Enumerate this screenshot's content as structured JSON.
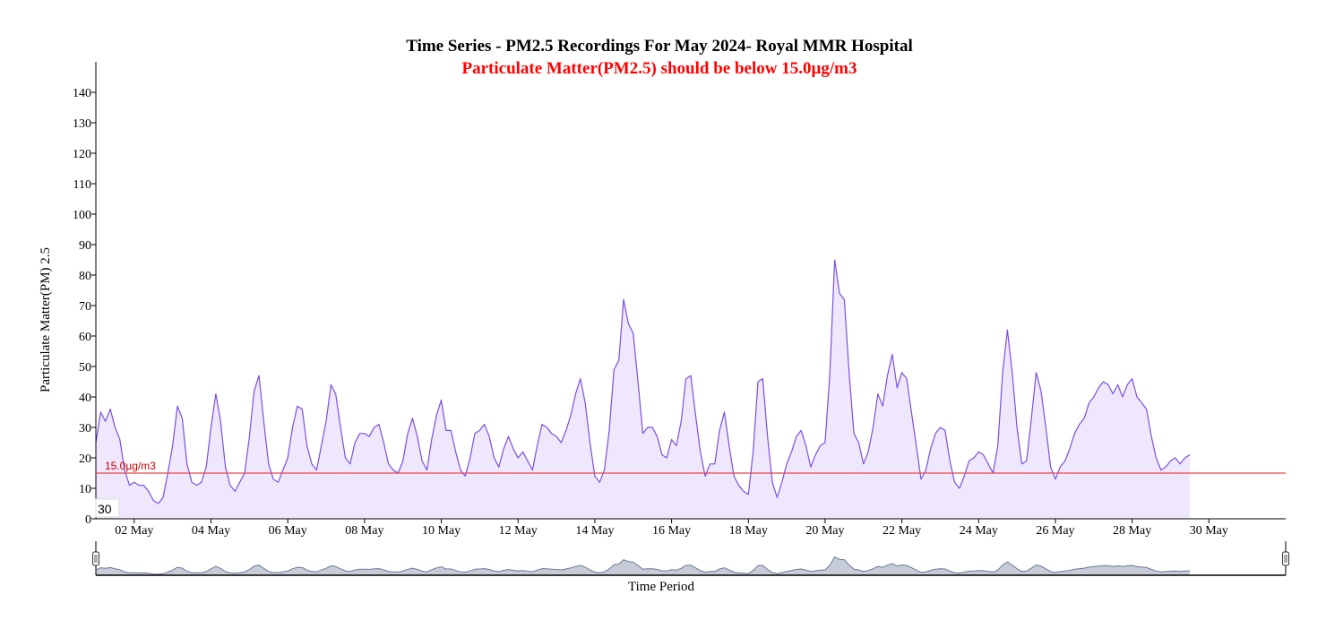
{
  "chart_data": {
    "type": "area",
    "title": "Time Series - PM2.5 Recordings For May 2024- Royal MMR Hospital",
    "subtitle": "Particulate Matter(PM2.5) should be below 15.0µg/m3",
    "xlabel": "Time Period",
    "ylabel": "Particulate Matter(PM) 2.5",
    "ylim": [
      0,
      150
    ],
    "xlim": [
      "2024-05-01",
      "2024-06-01"
    ],
    "y_ticks": [
      0,
      10,
      20,
      30,
      40,
      50,
      60,
      70,
      80,
      90,
      100,
      110,
      120,
      130,
      140
    ],
    "x_ticks": [
      "02 May",
      "04 May",
      "06 May",
      "08 May",
      "10 May",
      "12 May",
      "14 May",
      "16 May",
      "18 May",
      "20 May",
      "22 May",
      "24 May",
      "26 May",
      "28 May",
      "30 May"
    ],
    "threshold": {
      "value": 15.0,
      "label": "15.0µg/m3",
      "color": "#e8454f"
    },
    "badge": "30",
    "grid": false,
    "legend": "none",
    "series": [
      {
        "color": "#7b4fe0",
        "fill": "#efe8fd",
        "points": [
          [
            "2024-05-01 00:00",
            25
          ],
          [
            "2024-05-01 03:00",
            35
          ],
          [
            "2024-05-01 06:00",
            32
          ],
          [
            "2024-05-01 09:00",
            36
          ],
          [
            "2024-05-01 12:00",
            30
          ],
          [
            "2024-05-01 15:00",
            26
          ],
          [
            "2024-05-01 18:00",
            16
          ],
          [
            "2024-05-01 21:00",
            11
          ],
          [
            "2024-05-02 00:00",
            12
          ],
          [
            "2024-05-02 03:00",
            11
          ],
          [
            "2024-05-02 06:00",
            11
          ],
          [
            "2024-05-02 09:00",
            9
          ],
          [
            "2024-05-02 12:00",
            6
          ],
          [
            "2024-05-02 15:00",
            5
          ],
          [
            "2024-05-02 18:00",
            7
          ],
          [
            "2024-05-02 21:00",
            15
          ],
          [
            "2024-05-03 00:00",
            24
          ],
          [
            "2024-05-03 03:00",
            37
          ],
          [
            "2024-05-03 06:00",
            33
          ],
          [
            "2024-05-03 09:00",
            18
          ],
          [
            "2024-05-03 12:00",
            12
          ],
          [
            "2024-05-03 15:00",
            11
          ],
          [
            "2024-05-03 18:00",
            12
          ],
          [
            "2024-05-03 21:00",
            17
          ],
          [
            "2024-05-04 00:00",
            30
          ],
          [
            "2024-05-04 03:00",
            41
          ],
          [
            "2024-05-04 06:00",
            32
          ],
          [
            "2024-05-04 09:00",
            17
          ],
          [
            "2024-05-04 12:00",
            11
          ],
          [
            "2024-05-04 15:00",
            9
          ],
          [
            "2024-05-04 18:00",
            12
          ],
          [
            "2024-05-04 21:00",
            15
          ],
          [
            "2024-05-05 00:00",
            27
          ],
          [
            "2024-05-05 03:00",
            42
          ],
          [
            "2024-05-05 06:00",
            47
          ],
          [
            "2024-05-05 09:00",
            32
          ],
          [
            "2024-05-05 12:00",
            18
          ],
          [
            "2024-05-05 15:00",
            13
          ],
          [
            "2024-05-05 18:00",
            12
          ],
          [
            "2024-05-05 21:00",
            16
          ],
          [
            "2024-05-06 00:00",
            20
          ],
          [
            "2024-05-06 03:00",
            30
          ],
          [
            "2024-05-06 06:00",
            37
          ],
          [
            "2024-05-06 09:00",
            36
          ],
          [
            "2024-05-06 12:00",
            24
          ],
          [
            "2024-05-06 15:00",
            18
          ],
          [
            "2024-05-06 18:00",
            16
          ],
          [
            "2024-05-06 21:00",
            24
          ],
          [
            "2024-05-07 00:00",
            32
          ],
          [
            "2024-05-07 03:00",
            44
          ],
          [
            "2024-05-07 06:00",
            41
          ],
          [
            "2024-05-07 09:00",
            30
          ],
          [
            "2024-05-07 12:00",
            20
          ],
          [
            "2024-05-07 15:00",
            18
          ],
          [
            "2024-05-07 18:00",
            25
          ],
          [
            "2024-05-07 21:00",
            28
          ],
          [
            "2024-05-08 00:00",
            28
          ],
          [
            "2024-05-08 03:00",
            27
          ],
          [
            "2024-05-08 06:00",
            30
          ],
          [
            "2024-05-08 09:00",
            31
          ],
          [
            "2024-05-08 12:00",
            25
          ],
          [
            "2024-05-08 15:00",
            18
          ],
          [
            "2024-05-08 18:00",
            16
          ],
          [
            "2024-05-08 21:00",
            15
          ],
          [
            "2024-05-09 00:00",
            19
          ],
          [
            "2024-05-09 03:00",
            28
          ],
          [
            "2024-05-09 06:00",
            33
          ],
          [
            "2024-05-09 09:00",
            27
          ],
          [
            "2024-05-09 12:00",
            19
          ],
          [
            "2024-05-09 15:00",
            16
          ],
          [
            "2024-05-09 18:00",
            26
          ],
          [
            "2024-05-09 21:00",
            34
          ],
          [
            "2024-05-10 00:00",
            39
          ],
          [
            "2024-05-10 03:00",
            29
          ],
          [
            "2024-05-10 06:00",
            29
          ],
          [
            "2024-05-10 09:00",
            22
          ],
          [
            "2024-05-10 12:00",
            16
          ],
          [
            "2024-05-10 15:00",
            14
          ],
          [
            "2024-05-10 18:00",
            20
          ],
          [
            "2024-05-10 21:00",
            28
          ],
          [
            "2024-05-11 00:00",
            29
          ],
          [
            "2024-05-11 03:00",
            31
          ],
          [
            "2024-05-11 06:00",
            27
          ],
          [
            "2024-05-11 09:00",
            20
          ],
          [
            "2024-05-11 12:00",
            17
          ],
          [
            "2024-05-11 15:00",
            23
          ],
          [
            "2024-05-11 18:00",
            27
          ],
          [
            "2024-05-11 21:00",
            23
          ],
          [
            "2024-05-12 00:00",
            20
          ],
          [
            "2024-05-12 03:00",
            22
          ],
          [
            "2024-05-12 06:00",
            19
          ],
          [
            "2024-05-12 09:00",
            16
          ],
          [
            "2024-05-12 12:00",
            24
          ],
          [
            "2024-05-12 15:00",
            31
          ],
          [
            "2024-05-12 18:00",
            30
          ],
          [
            "2024-05-12 21:00",
            28
          ],
          [
            "2024-05-13 00:00",
            27
          ],
          [
            "2024-05-13 03:00",
            25
          ],
          [
            "2024-05-13 06:00",
            29
          ],
          [
            "2024-05-13 09:00",
            34
          ],
          [
            "2024-05-13 12:00",
            41
          ],
          [
            "2024-05-13 15:00",
            46
          ],
          [
            "2024-05-13 18:00",
            38
          ],
          [
            "2024-05-13 21:00",
            25
          ],
          [
            "2024-05-14 00:00",
            14
          ],
          [
            "2024-05-14 03:00",
            12
          ],
          [
            "2024-05-14 06:00",
            16
          ],
          [
            "2024-05-14 09:00",
            29
          ],
          [
            "2024-05-14 12:00",
            49
          ],
          [
            "2024-05-14 15:00",
            52
          ],
          [
            "2024-05-14 18:00",
            72
          ],
          [
            "2024-05-14 21:00",
            64
          ],
          [
            "2024-05-15 00:00",
            61
          ],
          [
            "2024-05-15 03:00",
            45
          ],
          [
            "2024-05-15 06:00",
            28
          ],
          [
            "2024-05-15 09:00",
            30
          ],
          [
            "2024-05-15 12:00",
            30
          ],
          [
            "2024-05-15 15:00",
            27
          ],
          [
            "2024-05-15 18:00",
            21
          ],
          [
            "2024-05-15 21:00",
            20
          ],
          [
            "2024-05-16 00:00",
            26
          ],
          [
            "2024-05-16 03:00",
            24
          ],
          [
            "2024-05-16 06:00",
            32
          ],
          [
            "2024-05-16 09:00",
            46
          ],
          [
            "2024-05-16 12:00",
            47
          ],
          [
            "2024-05-16 15:00",
            34
          ],
          [
            "2024-05-16 18:00",
            22
          ],
          [
            "2024-05-16 21:00",
            14
          ],
          [
            "2024-05-17 00:00",
            18
          ],
          [
            "2024-05-17 03:00",
            18
          ],
          [
            "2024-05-17 06:00",
            29
          ],
          [
            "2024-05-17 09:00",
            35
          ],
          [
            "2024-05-17 12:00",
            24
          ],
          [
            "2024-05-17 15:00",
            14
          ],
          [
            "2024-05-17 18:00",
            11
          ],
          [
            "2024-05-17 21:00",
            9
          ],
          [
            "2024-05-18 00:00",
            8
          ],
          [
            "2024-05-18 03:00",
            22
          ],
          [
            "2024-05-18 06:00",
            45
          ],
          [
            "2024-05-18 09:00",
            46
          ],
          [
            "2024-05-18 12:00",
            27
          ],
          [
            "2024-05-18 15:00",
            12
          ],
          [
            "2024-05-18 18:00",
            7
          ],
          [
            "2024-05-18 21:00",
            12
          ],
          [
            "2024-05-19 00:00",
            18
          ],
          [
            "2024-05-19 03:00",
            22
          ],
          [
            "2024-05-19 06:00",
            27
          ],
          [
            "2024-05-19 09:00",
            29
          ],
          [
            "2024-05-19 12:00",
            24
          ],
          [
            "2024-05-19 15:00",
            17
          ],
          [
            "2024-05-19 18:00",
            21
          ],
          [
            "2024-05-19 21:00",
            24
          ],
          [
            "2024-05-20 00:00",
            25
          ],
          [
            "2024-05-20 03:00",
            48
          ],
          [
            "2024-05-20 06:00",
            85
          ],
          [
            "2024-05-20 09:00",
            74
          ],
          [
            "2024-05-20 12:00",
            72
          ],
          [
            "2024-05-20 15:00",
            48
          ],
          [
            "2024-05-20 18:00",
            28
          ],
          [
            "2024-05-20 21:00",
            25
          ],
          [
            "2024-05-21 00:00",
            18
          ],
          [
            "2024-05-21 03:00",
            22
          ],
          [
            "2024-05-21 06:00",
            30
          ],
          [
            "2024-05-21 09:00",
            41
          ],
          [
            "2024-05-21 12:00",
            37
          ],
          [
            "2024-05-21 15:00",
            47
          ],
          [
            "2024-05-21 18:00",
            54
          ],
          [
            "2024-05-21 21:00",
            43
          ],
          [
            "2024-05-22 00:00",
            48
          ],
          [
            "2024-05-22 03:00",
            46
          ],
          [
            "2024-05-22 06:00",
            35
          ],
          [
            "2024-05-22 09:00",
            24
          ],
          [
            "2024-05-22 12:00",
            13
          ],
          [
            "2024-05-22 15:00",
            16
          ],
          [
            "2024-05-22 18:00",
            23
          ],
          [
            "2024-05-22 21:00",
            28
          ],
          [
            "2024-05-23 00:00",
            30
          ],
          [
            "2024-05-23 03:00",
            29
          ],
          [
            "2024-05-23 06:00",
            19
          ],
          [
            "2024-05-23 09:00",
            12
          ],
          [
            "2024-05-23 12:00",
            10
          ],
          [
            "2024-05-23 15:00",
            14
          ],
          [
            "2024-05-23 18:00",
            19
          ],
          [
            "2024-05-23 21:00",
            20
          ],
          [
            "2024-05-24 00:00",
            22
          ],
          [
            "2024-05-24 03:00",
            21
          ],
          [
            "2024-05-24 06:00",
            18
          ],
          [
            "2024-05-24 09:00",
            15
          ],
          [
            "2024-05-24 12:00",
            24
          ],
          [
            "2024-05-24 15:00",
            48
          ],
          [
            "2024-05-24 18:00",
            62
          ],
          [
            "2024-05-24 21:00",
            48
          ],
          [
            "2024-05-25 00:00",
            30
          ],
          [
            "2024-05-25 03:00",
            18
          ],
          [
            "2024-05-25 06:00",
            19
          ],
          [
            "2024-05-25 09:00",
            33
          ],
          [
            "2024-05-25 12:00",
            48
          ],
          [
            "2024-05-25 15:00",
            42
          ],
          [
            "2024-05-25 18:00",
            30
          ],
          [
            "2024-05-25 21:00",
            17
          ],
          [
            "2024-05-26 00:00",
            13
          ],
          [
            "2024-05-26 03:00",
            17
          ],
          [
            "2024-05-26 06:00",
            19
          ],
          [
            "2024-05-26 09:00",
            23
          ],
          [
            "2024-05-26 12:00",
            28
          ],
          [
            "2024-05-26 15:00",
            31
          ],
          [
            "2024-05-26 18:00",
            33
          ],
          [
            "2024-05-26 21:00",
            38
          ],
          [
            "2024-05-27 00:00",
            40
          ],
          [
            "2024-05-27 03:00",
            43
          ],
          [
            "2024-05-27 06:00",
            45
          ],
          [
            "2024-05-27 09:00",
            44
          ],
          [
            "2024-05-27 12:00",
            41
          ],
          [
            "2024-05-27 15:00",
            44
          ],
          [
            "2024-05-27 18:00",
            40
          ],
          [
            "2024-05-27 21:00",
            44
          ],
          [
            "2024-05-28 00:00",
            46
          ],
          [
            "2024-05-28 03:00",
            40
          ],
          [
            "2024-05-28 06:00",
            38
          ],
          [
            "2024-05-28 09:00",
            36
          ],
          [
            "2024-05-28 12:00",
            27
          ],
          [
            "2024-05-28 15:00",
            20
          ],
          [
            "2024-05-28 18:00",
            16
          ],
          [
            "2024-05-28 21:00",
            17
          ],
          [
            "2024-05-29 00:00",
            19
          ],
          [
            "2024-05-29 03:00",
            20
          ],
          [
            "2024-05-29 06:00",
            18
          ],
          [
            "2024-05-29 09:00",
            20
          ],
          [
            "2024-05-29 12:00",
            21
          ]
        ]
      }
    ]
  }
}
